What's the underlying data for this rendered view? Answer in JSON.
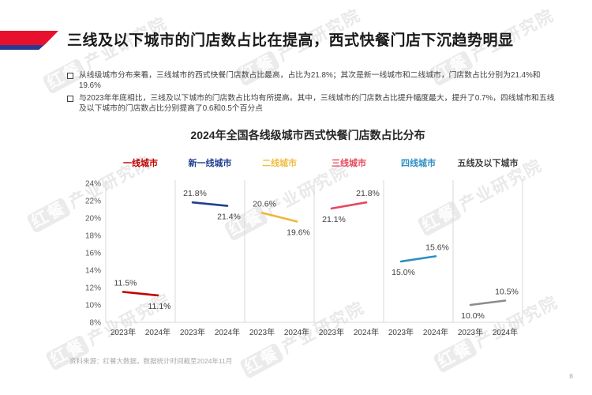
{
  "page": {
    "number": "8"
  },
  "header": {
    "title": "三线及以下城市的门店数占比在提高，西式快餐门店下沉趋势明显"
  },
  "bullets": [
    "从线级城市分布来看，三线城市的西式快餐门店数占比最高，占比为21.8%；其次是新一线城市和二线城市，门店数占比分别为21.4%和19.6%",
    "与2023年年底相比，三线及以下城市的门店数占比均有所提高。其中，三线城市的门店数占比提升幅度最大，提升了0.7%，四线城市和五线及以下城市的门店数占比分别提高了0.6和0.5个百分点"
  ],
  "chart_data": {
    "type": "line",
    "title": "2024年全国各线级城市西式快餐门店数占比分布",
    "categories": [
      "2023年",
      "2024年"
    ],
    "series": [
      {
        "name": "一线城市",
        "color": "#C00000",
        "label_color": "#C00000",
        "values": [
          11.5,
          11.1
        ]
      },
      {
        "name": "新一线城市",
        "color": "#203F8F",
        "label_color": "#203F8F",
        "values": [
          21.8,
          21.4
        ]
      },
      {
        "name": "二线城市",
        "color": "#EDB73A",
        "label_color": "#F2BC43",
        "values": [
          20.6,
          19.6
        ]
      },
      {
        "name": "三线城市",
        "color": "#E8475F",
        "label_color": "#E8475F",
        "values": [
          21.1,
          21.8
        ]
      },
      {
        "name": "四线城市",
        "color": "#2D8FC2",
        "label_color": "#2D8FC2",
        "values": [
          15.0,
          15.6
        ]
      },
      {
        "name": "五线及以下城市",
        "color": "#8C8C8C",
        "label_color": "#3F3F3F",
        "values": [
          10.0,
          10.5
        ]
      }
    ],
    "ylim": [
      8,
      24
    ],
    "ytick_labels": [
      "8%",
      "10%",
      "12%",
      "14%",
      "16%",
      "18%",
      "20%",
      "22%",
      "24%"
    ],
    "value_labels": [
      "11.5%",
      "11.1%",
      "21.8%",
      "21.4%",
      "20.6%",
      "19.6%",
      "21.1%",
      "21.8%",
      "15.0%",
      "15.6%",
      "10.0%",
      "10.5%"
    ],
    "legend_position": "top",
    "grid": false
  },
  "footer": {
    "source": "资料来源：红餐大数据，数据统计时间截至2024年11月"
  },
  "watermark": {
    "logo_text": "红餐",
    "text": "产业研究院"
  },
  "colors": {
    "accent_red": "#E8112D",
    "accent_blue": "#2B3A8F",
    "axis_line": "#D9D9D9",
    "tick_text": "#595959",
    "value_text": "#404040",
    "xlabel_text": "#404040"
  }
}
